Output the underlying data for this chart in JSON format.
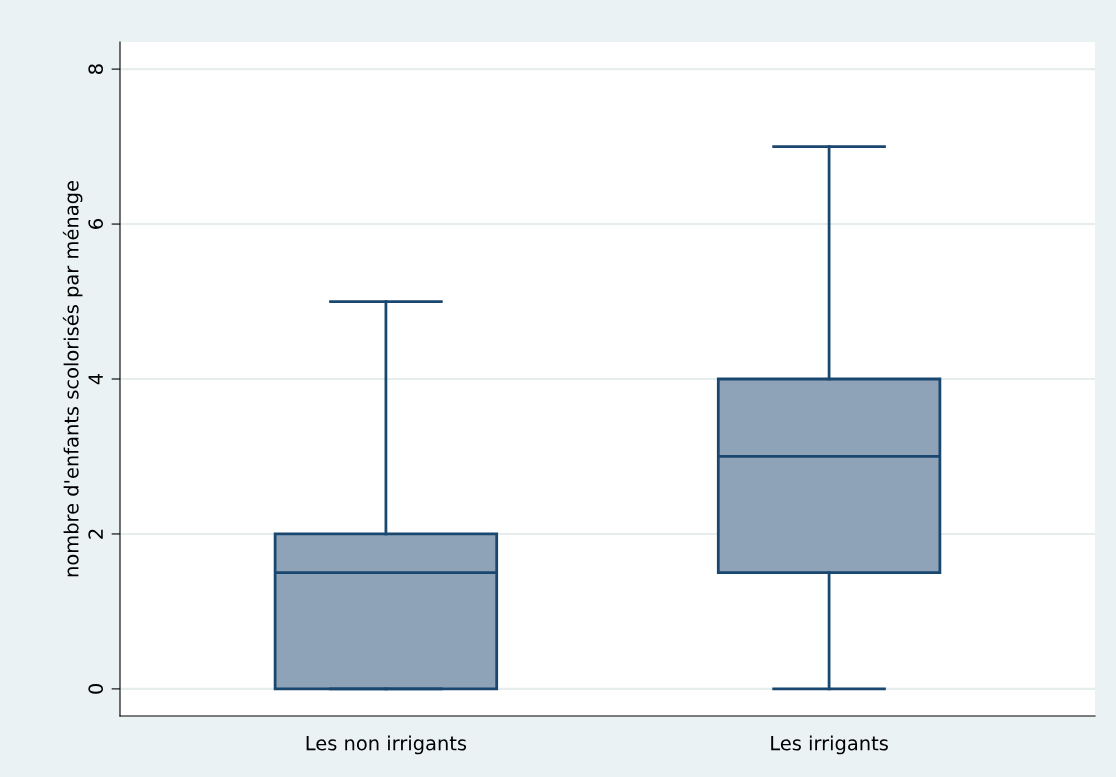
{
  "chart_data": {
    "type": "box",
    "ylabel": "nombre d'enfants scolorisés par ménage",
    "categories": [
      "Les non irrigants",
      "Les irrigants"
    ],
    "series": [
      {
        "color": "#8ea3b8",
        "boxes": [
          {
            "low": 0,
            "q1": 0,
            "median": 1.5,
            "q3": 2,
            "high": 5
          },
          {
            "low": 0,
            "q1": 1.5,
            "median": 3,
            "q3": 4,
            "high": 7
          }
        ]
      }
    ],
    "ylim": [
      -0.35,
      8.35
    ],
    "yticks": [
      0,
      2,
      4,
      6,
      8
    ],
    "grid": "y",
    "legend": false
  }
}
